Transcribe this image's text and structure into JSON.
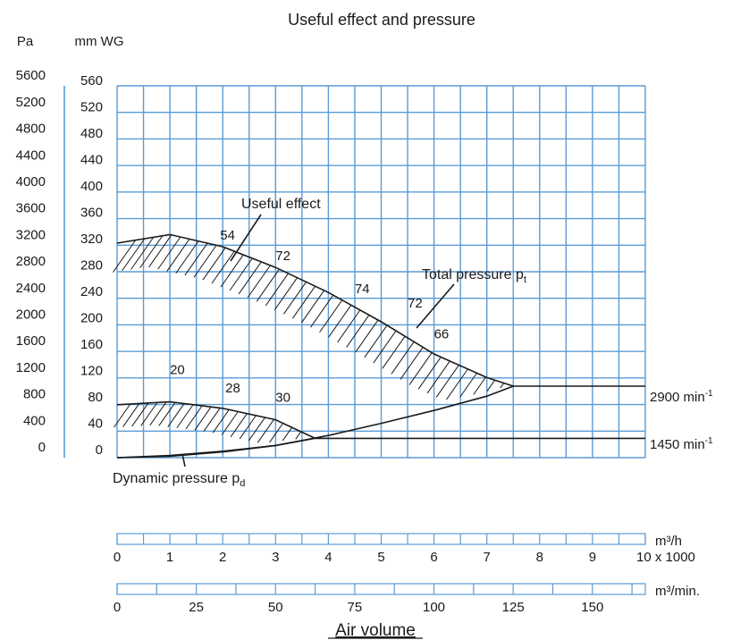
{
  "chart_data": {
    "type": "line",
    "title": "Useful effect and pressure",
    "y_units": {
      "left": "Pa",
      "right": "mm WG"
    },
    "pa_ticks": [
      "0",
      "400",
      "800",
      "1200",
      "1600",
      "2000",
      "2400",
      "2800",
      "3200",
      "3600",
      "4000",
      "4400",
      "4800",
      "5200",
      "5600"
    ],
    "mmwg_ticks": [
      "0",
      "40",
      "80",
      "120",
      "160",
      "200",
      "240",
      "280",
      "320",
      "360",
      "400",
      "440",
      "480",
      "520",
      "560"
    ],
    "ylim": [
      0,
      520
    ],
    "xlim": [
      0,
      10
    ],
    "grid": true,
    "x_axes": [
      {
        "unit": "m³/h",
        "ticks": [
          "0",
          "1",
          "2",
          "3",
          "4",
          "5",
          "6",
          "7",
          "8",
          "9",
          "10 x 1000"
        ],
        "range": [
          0,
          10
        ]
      },
      {
        "unit": "m³/min.",
        "ticks": [
          "0",
          "25",
          "50",
          "75",
          "100",
          "125",
          "150"
        ],
        "range": [
          0,
          166.7
        ]
      }
    ],
    "xlabel": "Air volume",
    "series": [
      {
        "name": "Total pressure pt",
        "speed": "2900 min-1",
        "x": [
          0,
          1,
          2,
          3,
          4,
          5,
          6,
          7,
          7.5
        ],
        "y": [
          300,
          312,
          295,
          266,
          231,
          190,
          145,
          112,
          100
        ]
      },
      {
        "name": "Total pressure pt",
        "speed": "1450 min-1",
        "x": [
          0,
          1,
          2,
          3,
          3.75
        ],
        "y": [
          74,
          78,
          69,
          53,
          27
        ]
      },
      {
        "name": "Dynamic pressure pd",
        "speed": "2900 min-1",
        "x": [
          0,
          1,
          2,
          3,
          4,
          5,
          6,
          7,
          7.5
        ],
        "y": [
          0,
          2,
          8,
          17,
          31,
          48,
          66,
          86,
          100
        ]
      },
      {
        "name": "Dynamic pressure pd",
        "speed": "1450 min-1",
        "x": [
          0,
          1,
          2,
          3,
          3.75
        ],
        "y": [
          0,
          3,
          9,
          17,
          27
        ]
      },
      {
        "name": "2900 min-1 line",
        "x": [
          7.5,
          10
        ],
        "y": [
          100,
          100
        ]
      },
      {
        "name": "1450 min-1 line",
        "x": [
          3.75,
          10
        ],
        "y": [
          27,
          27
        ]
      }
    ],
    "efficiency_labels": [
      {
        "text": "54",
        "x": 1.95,
        "y": 305
      },
      {
        "text": "72",
        "x": 3.0,
        "y": 276
      },
      {
        "text": "74",
        "x": 4.5,
        "y": 230
      },
      {
        "text": "72",
        "x": 5.5,
        "y": 210
      },
      {
        "text": "66",
        "x": 6.0,
        "y": 167
      },
      {
        "text": "20",
        "x": 1.0,
        "y": 117
      },
      {
        "text": "28",
        "x": 2.05,
        "y": 91
      },
      {
        "text": "30",
        "x": 3.0,
        "y": 78
      }
    ],
    "annotations": {
      "useful_effect": "Useful effect",
      "total_pressure": "Total pressure p",
      "total_pressure_sub": "t",
      "dynamic_pressure": "Dynamic pressure p",
      "dynamic_pressure_sub": "d",
      "speed_high": "2900 min",
      "speed_low": "1450 min",
      "speed_exp": "-1"
    }
  }
}
